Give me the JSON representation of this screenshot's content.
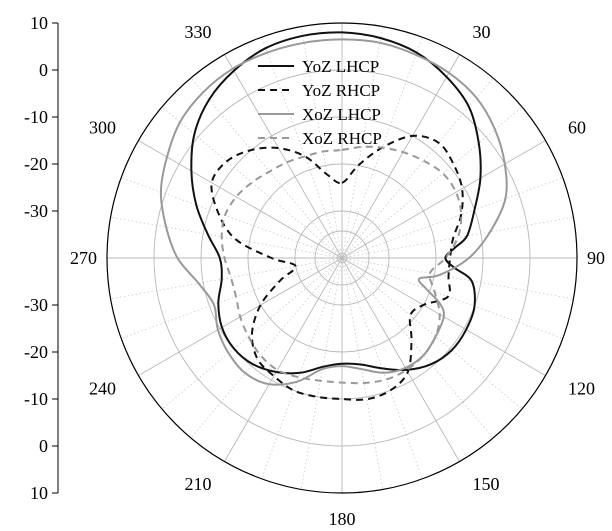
{
  "chart_data": {
    "type": "polar",
    "radial_axis": {
      "unit": "dB",
      "range": [
        -40,
        10
      ],
      "ring_values": [
        -30,
        -20,
        -10,
        0,
        10
      ],
      "left_tick_labels": [
        "10",
        "0",
        "-10",
        "-20",
        "-30",
        "-30",
        "-20",
        "-10",
        "0",
        "10"
      ]
    },
    "angle_labels": [
      {
        "deg": 0,
        "text": ""
      },
      {
        "deg": 30,
        "text": "30"
      },
      {
        "deg": 60,
        "text": "60"
      },
      {
        "deg": 90,
        "text": "90"
      },
      {
        "deg": 120,
        "text": "120"
      },
      {
        "deg": 150,
        "text": "150"
      },
      {
        "deg": 180,
        "text": "180"
      },
      {
        "deg": 210,
        "text": "210"
      },
      {
        "deg": 240,
        "text": "240"
      },
      {
        "deg": 270,
        "text": "270"
      },
      {
        "deg": 300,
        "text": "300"
      },
      {
        "deg": 330,
        "text": "330"
      }
    ],
    "grid": true,
    "legend_position": "top-center",
    "series": [
      {
        "name": "YoZ LHCP",
        "color": "#111111",
        "dash": "solid",
        "points": [
          [
            0,
            8
          ],
          [
            10,
            7.5
          ],
          [
            20,
            6.5
          ],
          [
            30,
            4.5
          ],
          [
            40,
            2
          ],
          [
            50,
            -2
          ],
          [
            60,
            -6
          ],
          [
            70,
            -10
          ],
          [
            80,
            -13
          ],
          [
            85,
            -16
          ],
          [
            90,
            -18
          ],
          [
            95,
            -16
          ],
          [
            100,
            -12
          ],
          [
            110,
            -10
          ],
          [
            120,
            -9.5
          ],
          [
            130,
            -9.5
          ],
          [
            140,
            -10.5
          ],
          [
            150,
            -12.5
          ],
          [
            160,
            -15
          ],
          [
            170,
            -17
          ],
          [
            180,
            -17.5
          ],
          [
            190,
            -16.5
          ],
          [
            200,
            -14
          ],
          [
            210,
            -12
          ],
          [
            220,
            -10.5
          ],
          [
            230,
            -10
          ],
          [
            240,
            -10.5
          ],
          [
            250,
            -12
          ],
          [
            260,
            -14
          ],
          [
            270,
            -14
          ],
          [
            280,
            -11
          ],
          [
            290,
            -7
          ],
          [
            300,
            -3
          ],
          [
            310,
            1
          ],
          [
            320,
            4
          ],
          [
            330,
            6
          ],
          [
            340,
            7.5
          ],
          [
            350,
            8
          ],
          [
            360,
            8
          ]
        ]
      },
      {
        "name": "YoZ RHCP",
        "color": "#111111",
        "dash": "dashed",
        "points": [
          [
            0,
            -24
          ],
          [
            10,
            -20
          ],
          [
            20,
            -15
          ],
          [
            30,
            -10
          ],
          [
            40,
            -8
          ],
          [
            50,
            -9
          ],
          [
            60,
            -10.5
          ],
          [
            70,
            -13
          ],
          [
            80,
            -16
          ],
          [
            90,
            -17
          ],
          [
            100,
            -17
          ],
          [
            110,
            -16
          ],
          [
            120,
            -20
          ],
          [
            130,
            -21
          ],
          [
            140,
            -17
          ],
          [
            150,
            -12
          ],
          [
            160,
            -10
          ],
          [
            170,
            -9.5
          ],
          [
            180,
            -10
          ],
          [
            190,
            -10
          ],
          [
            200,
            -10
          ],
          [
            210,
            -11
          ],
          [
            220,
            -12
          ],
          [
            230,
            -15
          ],
          [
            240,
            -20
          ],
          [
            250,
            -26
          ],
          [
            260,
            -30
          ],
          [
            270,
            -25
          ],
          [
            280,
            -17
          ],
          [
            290,
            -12
          ],
          [
            300,
            -8
          ],
          [
            310,
            -8
          ],
          [
            320,
            -10
          ],
          [
            330,
            -13
          ],
          [
            340,
            -17
          ],
          [
            350,
            -22
          ],
          [
            360,
            -24
          ]
        ]
      },
      {
        "name": "XoZ LHCP",
        "color": "#999999",
        "dash": "solid",
        "points": [
          [
            0,
            6.5
          ],
          [
            10,
            6.5
          ],
          [
            20,
            6
          ],
          [
            30,
            5.5
          ],
          [
            40,
            4.5
          ],
          [
            50,
            2.5
          ],
          [
            60,
            0
          ],
          [
            70,
            -3
          ],
          [
            80,
            -8
          ],
          [
            90,
            -13
          ],
          [
            100,
            -19
          ],
          [
            105,
            -23
          ],
          [
            110,
            -21
          ],
          [
            115,
            -17
          ],
          [
            120,
            -15
          ],
          [
            130,
            -14
          ],
          [
            140,
            -13
          ],
          [
            150,
            -13
          ],
          [
            160,
            -14
          ],
          [
            170,
            -16
          ],
          [
            180,
            -17
          ],
          [
            190,
            -16
          ],
          [
            200,
            -12
          ],
          [
            210,
            -9
          ],
          [
            220,
            -8
          ],
          [
            230,
            -8.5
          ],
          [
            240,
            -9.5
          ],
          [
            250,
            -11
          ],
          [
            260,
            -9
          ],
          [
            270,
            -5
          ],
          [
            280,
            -2
          ],
          [
            290,
            1
          ],
          [
            300,
            3
          ],
          [
            310,
            5
          ],
          [
            320,
            6
          ],
          [
            330,
            6.5
          ],
          [
            340,
            6.5
          ],
          [
            350,
            6.5
          ],
          [
            360,
            6.5
          ]
        ]
      },
      {
        "name": "XoZ RHCP",
        "color": "#999999",
        "dash": "dashed",
        "points": [
          [
            0,
            -17
          ],
          [
            10,
            -16
          ],
          [
            20,
            -15
          ],
          [
            30,
            -14
          ],
          [
            40,
            -13
          ],
          [
            50,
            -12
          ],
          [
            60,
            -12
          ],
          [
            70,
            -13
          ],
          [
            80,
            -15
          ],
          [
            90,
            -18
          ],
          [
            100,
            -21
          ],
          [
            110,
            -19
          ],
          [
            120,
            -16
          ],
          [
            130,
            -14
          ],
          [
            140,
            -13
          ],
          [
            150,
            -12.5
          ],
          [
            160,
            -12.5
          ],
          [
            170,
            -13
          ],
          [
            180,
            -13.5
          ],
          [
            190,
            -13.5
          ],
          [
            200,
            -13
          ],
          [
            210,
            -12.5
          ],
          [
            220,
            -13
          ],
          [
            230,
            -14
          ],
          [
            240,
            -15
          ],
          [
            250,
            -16
          ],
          [
            260,
            -16
          ],
          [
            270,
            -15
          ],
          [
            280,
            -14
          ],
          [
            290,
            -13.5
          ],
          [
            300,
            -14
          ],
          [
            310,
            -15
          ],
          [
            320,
            -16
          ],
          [
            330,
            -16.5
          ],
          [
            340,
            -17
          ],
          [
            350,
            -17
          ],
          [
            360,
            -17
          ]
        ]
      }
    ]
  }
}
